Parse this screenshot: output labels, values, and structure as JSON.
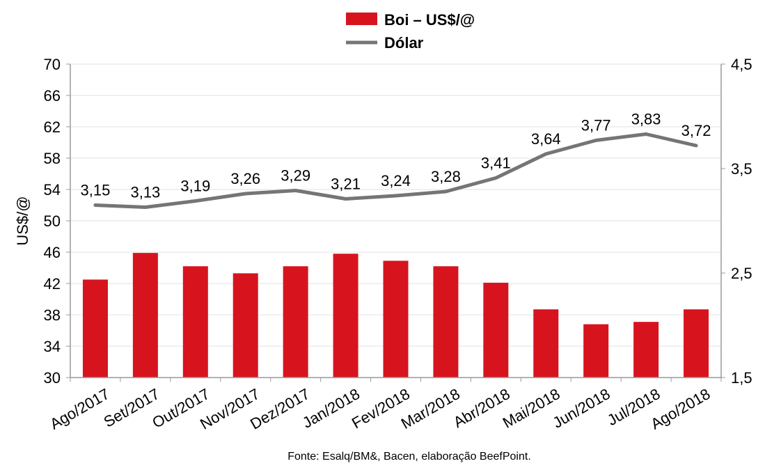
{
  "chart_data": {
    "type": "bar+line",
    "categories": [
      "Ago/2017",
      "Set/2017",
      "Out/2017",
      "Nov/2017",
      "Dez/2017",
      "Jan/2018",
      "Fev/2018",
      "Mar/2018",
      "Abr/2018",
      "Mai/2018",
      "Jun/2018",
      "Jul/2018",
      "Ago/2018"
    ],
    "series": [
      {
        "name": "Boi – US$/@",
        "type": "bar",
        "axis": "left",
        "color": "#d7141e",
        "values": [
          42.5,
          45.9,
          44.2,
          43.3,
          44.2,
          45.8,
          44.9,
          44.2,
          42.1,
          38.7,
          36.8,
          37.1,
          38.7
        ]
      },
      {
        "name": "Dólar",
        "type": "line",
        "axis": "right",
        "color": "#757575",
        "values": [
          3.15,
          3.13,
          3.19,
          3.26,
          3.29,
          3.21,
          3.24,
          3.28,
          3.41,
          3.64,
          3.77,
          3.83,
          3.72
        ],
        "labels": [
          "3,15",
          "3,13",
          "3,19",
          "3,26",
          "3,29",
          "3,21",
          "3,24",
          "3,28",
          "3,41",
          "3,64",
          "3,77",
          "3,83",
          "3,72"
        ]
      }
    ],
    "y_left": {
      "label": "US$/@",
      "min": 30,
      "max": 70,
      "ticks": [
        30,
        34,
        38,
        42,
        46,
        50,
        54,
        58,
        62,
        66,
        70
      ]
    },
    "y_right": {
      "min": 1.5,
      "max": 4.5,
      "ticks": [
        1.5,
        2.5,
        3.5,
        4.5
      ],
      "tick_labels": [
        "1,5",
        "2,5",
        "3,5",
        "4,5"
      ]
    },
    "grid": true,
    "legend_position": "top-center",
    "source": "Fonte: Esalq/BM&, Bacen, elaboração BeefPoint."
  }
}
